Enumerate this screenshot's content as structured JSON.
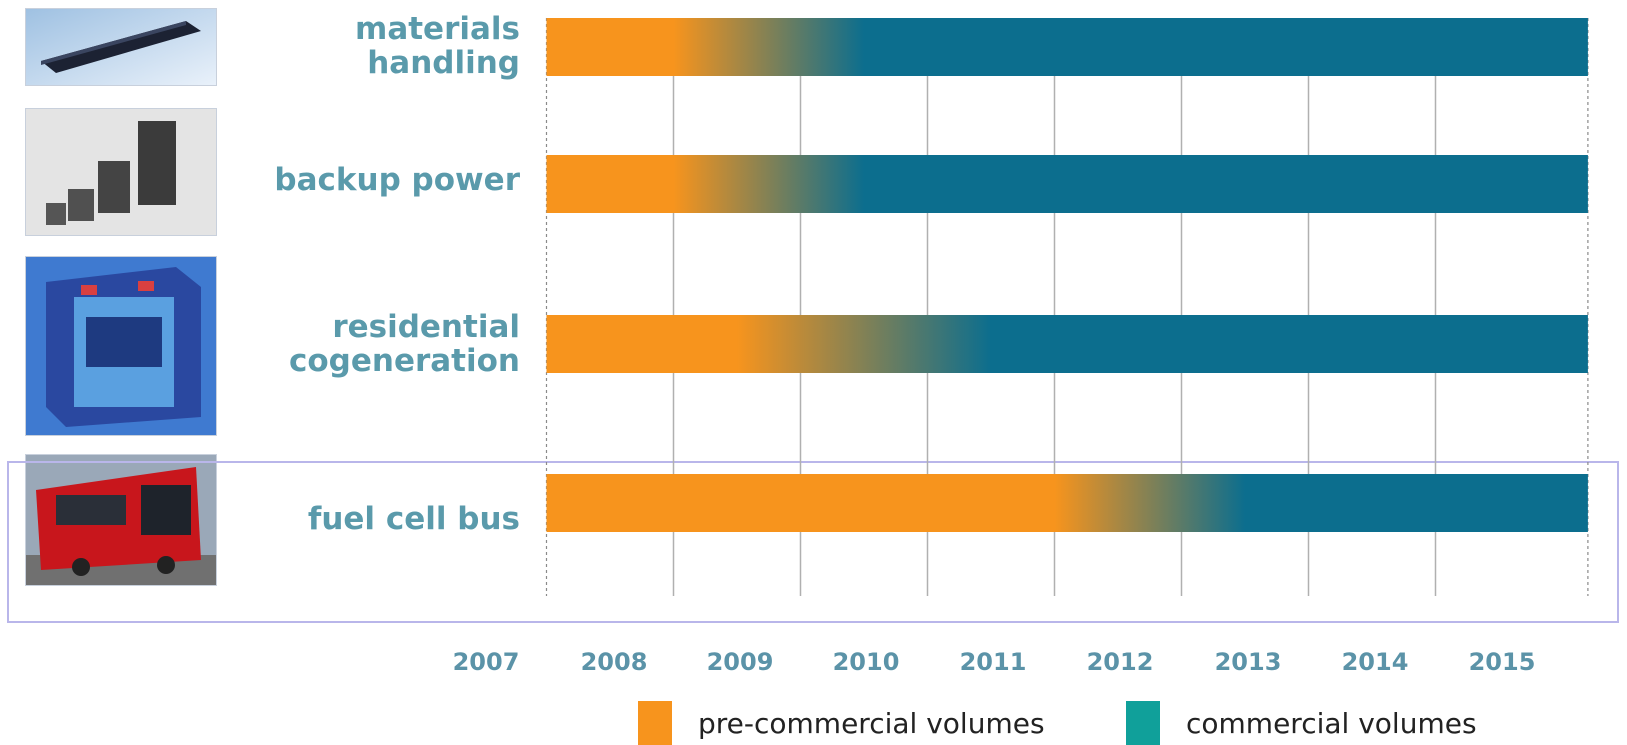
{
  "chart_data": {
    "type": "timeline",
    "title": "",
    "xlabel": "",
    "ylabel": "",
    "x_ticks": [
      "2007",
      "2008",
      "2009",
      "2010",
      "2011",
      "2012",
      "2013",
      "2014",
      "2015"
    ],
    "xlim": [
      2007.5,
      2015.7
    ],
    "grid": true,
    "legend_position": "bottom",
    "colors": {
      "pre_commercial": "#f7941d",
      "commercial": "#0c6e8e",
      "legend_commercial": "#10a09a"
    },
    "legend": [
      {
        "label": "pre-commercial volumes",
        "color": "#f7941d"
      },
      {
        "label": "commercial volumes",
        "color": "#10a09a"
      }
    ],
    "categories": [
      {
        "label": "materials handling",
        "start": 2007.5,
        "transition_start": 2008.5,
        "transition_end": 2010.0,
        "end": 2015.7,
        "image": "forklift-fuel-cell-module"
      },
      {
        "label": "backup power",
        "start": 2007.5,
        "transition_start": 2008.5,
        "transition_end": 2010.0,
        "end": 2015.7,
        "image": "backup-power-fuel-cell-stacks"
      },
      {
        "label": "residential cogeneration",
        "start": 2007.5,
        "transition_start": 2009.0,
        "transition_end": 2011.0,
        "end": 2015.7,
        "image": "residential-cogeneration-unit"
      },
      {
        "label": "fuel cell bus",
        "start": 2007.5,
        "transition_start": 2011.5,
        "transition_end": 2013.0,
        "end": 2015.7,
        "image": "red-fuel-cell-bus"
      }
    ],
    "highlighted_category": "fuel cell bus"
  }
}
